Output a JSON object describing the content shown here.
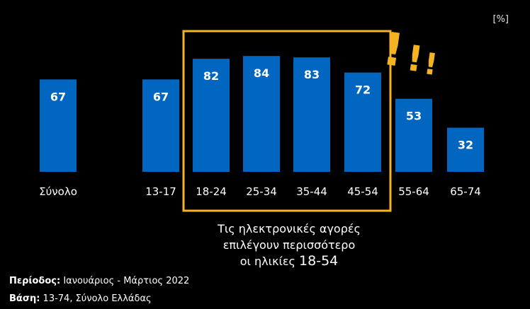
{
  "chart_data": {
    "type": "bar",
    "unit_label": "[%]",
    "categories": [
      "Σύνολο",
      "13-17",
      "18-24",
      "25-34",
      "35-44",
      "45-54",
      "55-64",
      "65-74"
    ],
    "values": [
      67,
      67,
      82,
      84,
      83,
      72,
      53,
      32
    ],
    "bar_color": "#0066c0",
    "highlight": {
      "categories": [
        "18-24",
        "25-34",
        "35-44",
        "45-54"
      ],
      "color": "#f5b323",
      "exclamation": "!!!"
    },
    "annotation": {
      "line1": "Τις ηλεκτρονικές αγορές",
      "line2": "επιλέγουν περισσότερο",
      "line3_prefix": "οι ηλικίες ",
      "line3_value": "18-54"
    }
  },
  "footer": {
    "period_label": "Περίοδος:",
    "period_value": " Ιανουάριος - Μάρτιος 2022",
    "base_label": "Βάση:",
    "base_value": " 13-74, Σύνολο Ελλάδας"
  }
}
